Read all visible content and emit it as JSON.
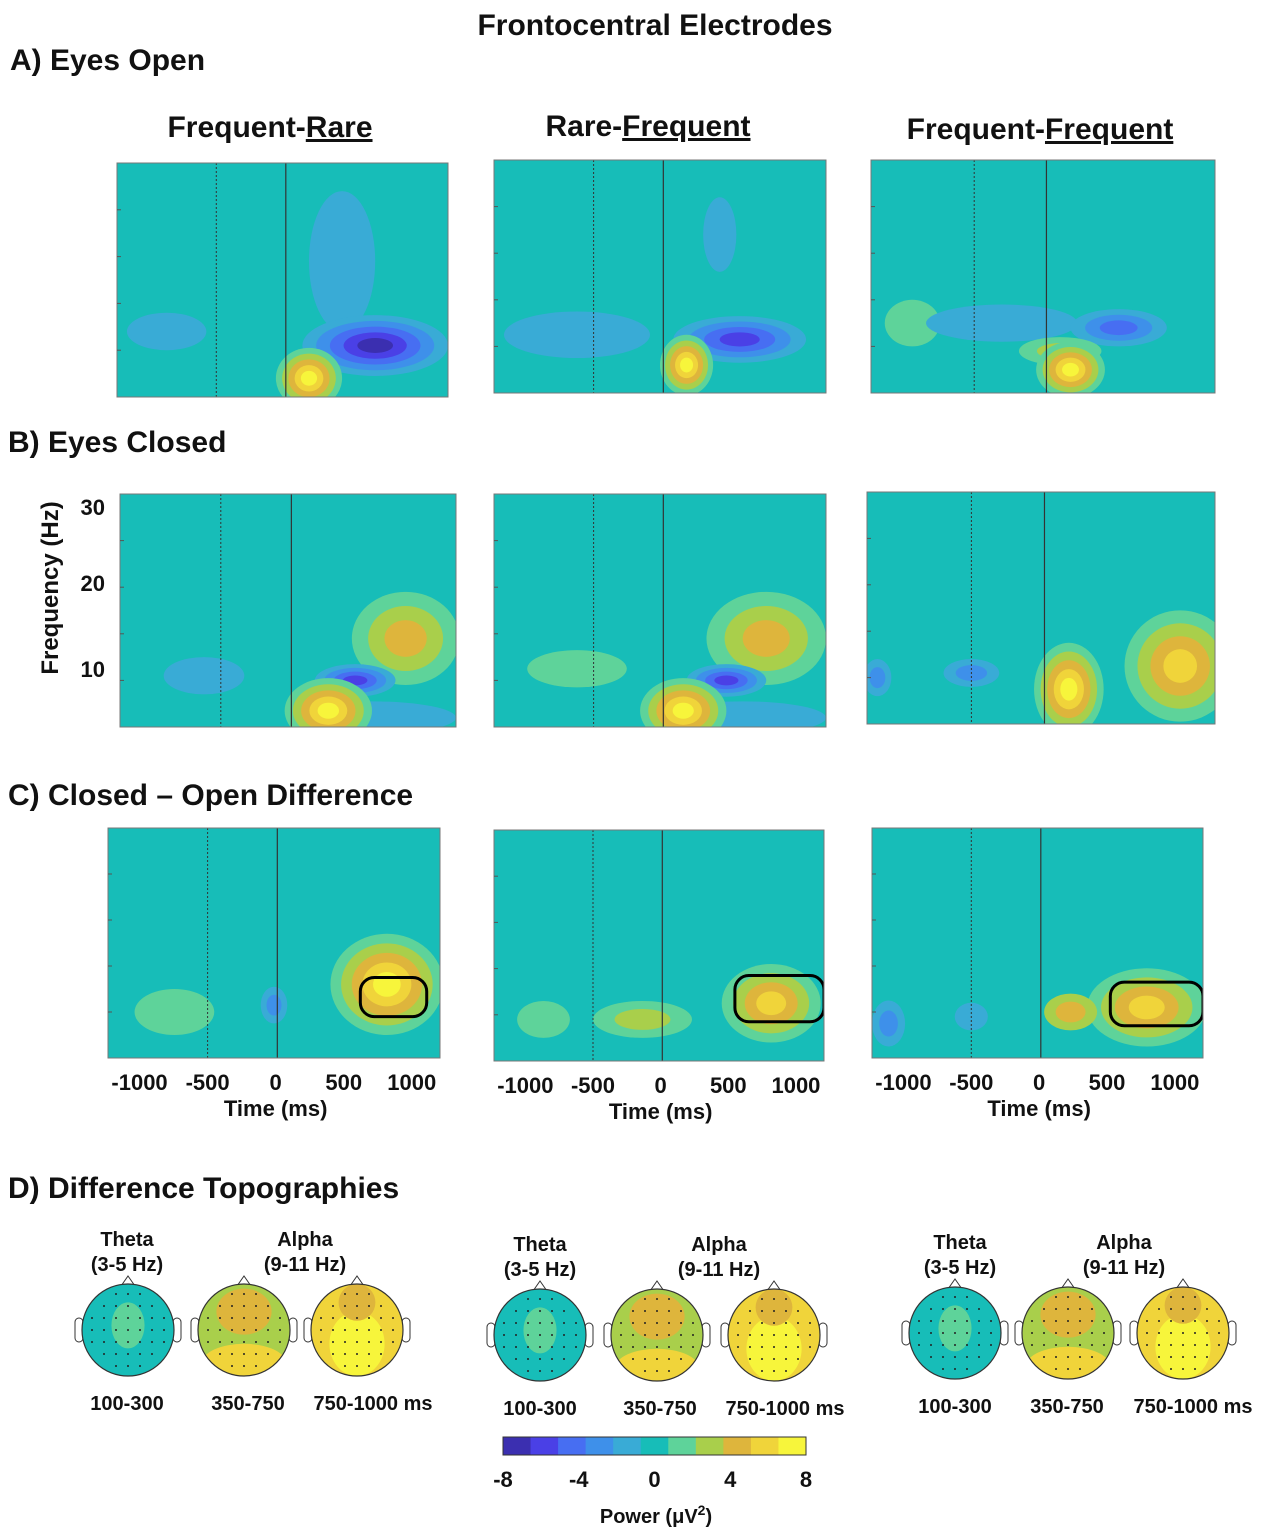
{
  "title": "Frontocentral Electrodes",
  "sections": [
    "A)  Eyes Open",
    "B)  Eyes Closed",
    "C)   Closed – Open Difference",
    "D)  Difference Topographies"
  ],
  "columns": [
    {
      "prefix": "Frequent-",
      "underlined": "Rare"
    },
    {
      "prefix": "Rare-",
      "underlined": "Frequent"
    },
    {
      "prefix": "Frequent-",
      "underlined": "Frequent"
    }
  ],
  "y_axis": {
    "label": "Frequency (Hz)",
    "ticks": [
      "30",
      "20",
      "10"
    ]
  },
  "x_axis": {
    "label": "Time (ms)",
    "ticks": [
      "-1000",
      "-500",
      "0",
      "500",
      "1000"
    ]
  },
  "topographies": {
    "theta": [
      "Theta",
      "(3-5 Hz)"
    ],
    "alpha": [
      "Alpha",
      "(9-11 Hz)"
    ],
    "windows": [
      "100-300",
      "350-750",
      "750-1000 ms"
    ]
  },
  "colorbar": {
    "ticks": [
      "-8",
      "-4",
      "0",
      "4",
      "8"
    ],
    "label": "Power (μV",
    "label_sup": "2",
    "label_end": ")"
  }
}
